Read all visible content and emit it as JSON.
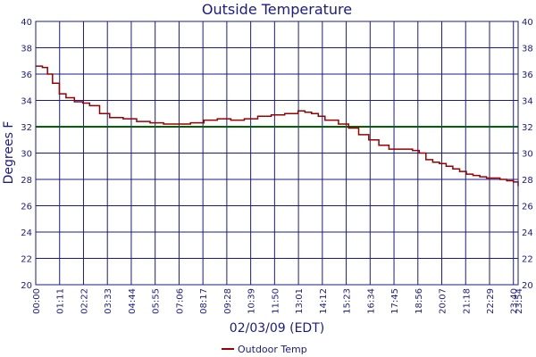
{
  "chart_data": {
    "type": "line",
    "title": "Outside Temperature",
    "xlabel": "02/03/09 (EDT)",
    "ylabel": "Degrees F",
    "ylim": [
      20,
      40
    ],
    "y_ticks": [
      20,
      22,
      24,
      26,
      28,
      30,
      32,
      34,
      36,
      38,
      40
    ],
    "x_ticks": [
      "00:00",
      "01:11",
      "02:22",
      "03:33",
      "04:44",
      "05:55",
      "07:06",
      "08:17",
      "09:28",
      "10:39",
      "11:50",
      "13:01",
      "14:12",
      "15:23",
      "16:34",
      "17:45",
      "18:56",
      "20:07",
      "21:18",
      "22:29",
      "23:40",
      "23:54"
    ],
    "x_range_minutes": [
      0,
      1434
    ],
    "grid": true,
    "legend_position": "bottom-center",
    "reference_line": {
      "value": 32
    },
    "series": [
      {
        "name": "Outdoor Temp",
        "color": "#990000",
        "x_minutes": [
          0,
          20,
          35,
          50,
          70,
          90,
          115,
          140,
          160,
          190,
          220,
          260,
          300,
          340,
          380,
          420,
          460,
          500,
          540,
          580,
          620,
          660,
          700,
          740,
          780,
          800,
          820,
          840,
          860,
          880,
          900,
          930,
          960,
          990,
          1020,
          1050,
          1080,
          1100,
          1120,
          1140,
          1160,
          1180,
          1200,
          1220,
          1240,
          1260,
          1280,
          1300,
          1320,
          1340,
          1360,
          1380,
          1400,
          1420,
          1434
        ],
        "values": [
          36.6,
          36.5,
          36.0,
          35.3,
          34.5,
          34.2,
          33.9,
          33.8,
          33.6,
          33.0,
          32.7,
          32.6,
          32.4,
          32.3,
          32.2,
          32.2,
          32.3,
          32.5,
          32.6,
          32.5,
          32.6,
          32.8,
          32.9,
          33.0,
          33.2,
          33.1,
          33.0,
          32.8,
          32.5,
          32.5,
          32.2,
          31.9,
          31.4,
          31.0,
          30.6,
          30.3,
          30.3,
          30.3,
          30.2,
          30.0,
          29.5,
          29.3,
          29.2,
          29.0,
          28.8,
          28.6,
          28.4,
          28.3,
          28.2,
          28.1,
          28.1,
          28.0,
          27.9,
          27.8,
          27.5
        ]
      }
    ]
  }
}
